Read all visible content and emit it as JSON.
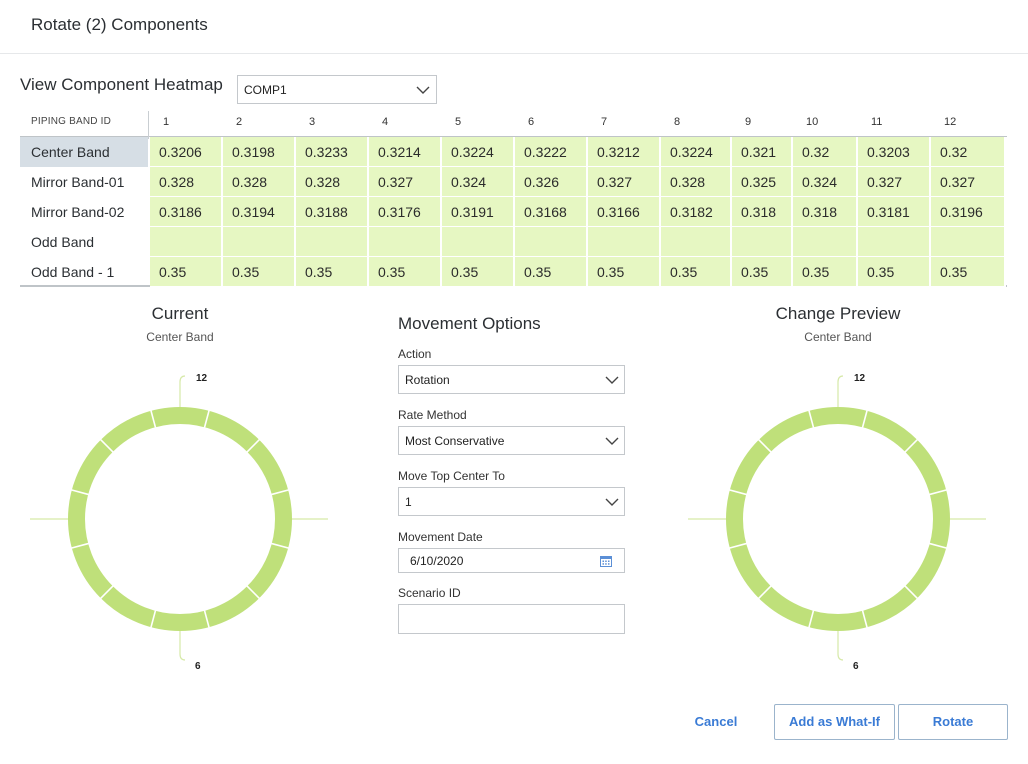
{
  "dialog": {
    "title": "Rotate (2) Components"
  },
  "heatmap": {
    "label": "View Component Heatmap",
    "component_select": {
      "value": "COMP1"
    },
    "id_column_header": "PIPING BAND ID",
    "columns": [
      "1",
      "2",
      "3",
      "4",
      "5",
      "6",
      "7",
      "8",
      "9",
      "10",
      "11",
      "12"
    ],
    "rows": [
      {
        "label": "Center Band",
        "selected": true,
        "values": [
          "0.3206",
          "0.3198",
          "0.3233",
          "0.3214",
          "0.3224",
          "0.3222",
          "0.3212",
          "0.3224",
          "0.321",
          "0.32",
          "0.3203",
          "0.32"
        ]
      },
      {
        "label": "Mirror Band-01",
        "selected": false,
        "values": [
          "0.328",
          "0.328",
          "0.328",
          "0.327",
          "0.324",
          "0.326",
          "0.327",
          "0.328",
          "0.325",
          "0.324",
          "0.327",
          "0.327"
        ]
      },
      {
        "label": "Mirror Band-02",
        "selected": false,
        "values": [
          "0.3186",
          "0.3194",
          "0.3188",
          "0.3176",
          "0.3191",
          "0.3168",
          "0.3166",
          "0.3182",
          "0.318",
          "0.318",
          "0.3181",
          "0.3196"
        ]
      },
      {
        "label": "Odd Band",
        "selected": false,
        "values": [
          "",
          "",
          "",
          "",
          "",
          "",
          "",
          "",
          "",
          "",
          "",
          ""
        ]
      },
      {
        "label": "Odd Band - 1",
        "selected": false,
        "values": [
          "0.35",
          "0.35",
          "0.35",
          "0.35",
          "0.35",
          "0.35",
          "0.35",
          "0.35",
          "0.35",
          "0.35",
          "0.35",
          "0.35"
        ]
      }
    ],
    "cell_color": "#e6f7c2"
  },
  "current": {
    "title": "Current",
    "subtitle": "Center Band",
    "top_marker": "12",
    "bottom_marker": "6",
    "segments": 12
  },
  "preview": {
    "title": "Change Preview",
    "subtitle": "Center Band",
    "top_marker": "12",
    "bottom_marker": "6",
    "segments": 12
  },
  "ring_color": "#bfe07a",
  "movement_options": {
    "title": "Movement Options",
    "action": {
      "label": "Action",
      "value": "Rotation"
    },
    "rate_method": {
      "label": "Rate Method",
      "value": "Most Conservative"
    },
    "move_top_center": {
      "label": "Move Top Center To",
      "value": "1"
    },
    "movement_date": {
      "label": "Movement Date",
      "value": "6/10/2020",
      "icon": "calendar-icon"
    },
    "scenario_id": {
      "label": "Scenario ID",
      "value": ""
    }
  },
  "buttons": {
    "cancel": "Cancel",
    "add_what_if": "Add as What-If",
    "rotate": "Rotate"
  },
  "accent_color": "#3a7bd5"
}
